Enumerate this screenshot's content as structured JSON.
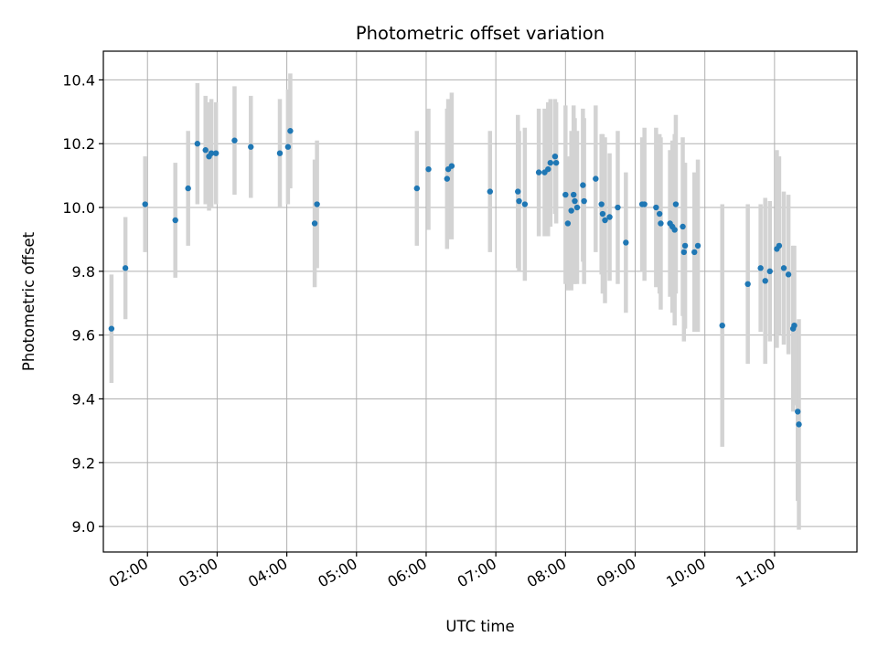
{
  "chart_data": {
    "type": "scatter",
    "title": "Photometric offset variation",
    "xlabel": "UTC time",
    "ylabel": "Photometric offset",
    "xlim": [
      "01:22",
      "12:11"
    ],
    "ylim": [
      8.92,
      10.49
    ],
    "grid": true,
    "x_ticks": [
      "02:00",
      "03:00",
      "04:00",
      "05:00",
      "06:00",
      "07:00",
      "08:00",
      "09:00",
      "10:00",
      "11:00"
    ],
    "y_ticks": [
      "9.0",
      "9.2",
      "9.4",
      "9.6",
      "9.8",
      "10.0",
      "10.2",
      "10.4"
    ],
    "colors": {
      "point": "#1f77b4",
      "errorbar": "#d3d3d3",
      "grid": "#b0b0b0"
    },
    "series": [
      {
        "x": [
          "01:29",
          "01:41",
          "01:58",
          "02:24",
          "02:35",
          "02:43",
          "02:50",
          "02:53",
          "02:55",
          "02:59",
          "03:15",
          "03:29",
          "03:54",
          "04:01",
          "04:03",
          "04:24",
          "04:26",
          "05:52",
          "06:02",
          "06:18",
          "06:19",
          "06:22",
          "06:55",
          "07:19",
          "07:20",
          "07:25",
          "07:37",
          "07:42",
          "07:45",
          "07:47",
          "07:51",
          "07:52",
          "08:00",
          "08:02",
          "08:05",
          "08:07",
          "08:08",
          "08:10",
          "08:15",
          "08:16",
          "08:26",
          "08:31",
          "08:32",
          "08:34",
          "08:38",
          "08:45",
          "08:52",
          "09:06",
          "09:08",
          "09:18",
          "09:21",
          "09:22",
          "09:30",
          "09:32",
          "09:34",
          "09:35",
          "09:41",
          "09:42",
          "09:43",
          "09:51",
          "09:54",
          "10:15",
          "10:37",
          "10:48",
          "10:52",
          "10:56",
          "11:02",
          "11:04",
          "11:08",
          "11:12",
          "11:16",
          "11:17",
          "11:20",
          "11:21"
        ],
        "y": [
          9.62,
          9.81,
          10.01,
          9.96,
          10.06,
          10.2,
          10.18,
          10.16,
          10.17,
          10.17,
          10.21,
          10.19,
          10.17,
          10.19,
          10.24,
          9.95,
          10.01,
          10.06,
          10.12,
          10.09,
          10.12,
          10.13,
          10.05,
          10.05,
          10.02,
          10.01,
          10.11,
          10.11,
          10.12,
          10.14,
          10.16,
          10.14,
          10.04,
          9.95,
          9.99,
          10.04,
          10.02,
          10.0,
          10.07,
          10.02,
          10.09,
          10.01,
          9.98,
          9.96,
          9.97,
          10.0,
          9.89,
          10.01,
          10.01,
          10.0,
          9.98,
          9.95,
          9.95,
          9.94,
          9.93,
          10.01,
          9.94,
          9.86,
          9.88,
          9.86,
          9.88,
          9.63,
          9.76,
          9.81,
          9.77,
          9.8,
          9.87,
          9.88,
          9.81,
          9.79,
          9.62,
          9.63,
          9.36,
          9.32
        ],
        "yerr": [
          0.17,
          0.16,
          0.15,
          0.18,
          0.18,
          0.19,
          0.17,
          0.17,
          0.17,
          0.16,
          0.17,
          0.16,
          0.17,
          0.18,
          0.18,
          0.2,
          0.2,
          0.18,
          0.19,
          0.22,
          0.22,
          0.23,
          0.19,
          0.24,
          0.22,
          0.24,
          0.2,
          0.2,
          0.21,
          0.2,
          0.18,
          0.19,
          0.28,
          0.21,
          0.25,
          0.28,
          0.26,
          0.24,
          0.24,
          0.26,
          0.23,
          0.22,
          0.25,
          0.26,
          0.2,
          0.24,
          0.22,
          0.21,
          0.24,
          0.25,
          0.25,
          0.27,
          0.23,
          0.27,
          0.3,
          0.28,
          0.28,
          0.28,
          0.26,
          0.25,
          0.27,
          0.38,
          0.25,
          0.2,
          0.26,
          0.22,
          0.31,
          0.28,
          0.24,
          0.25,
          0.26,
          0.25,
          0.28,
          0.33
        ]
      }
    ]
  }
}
